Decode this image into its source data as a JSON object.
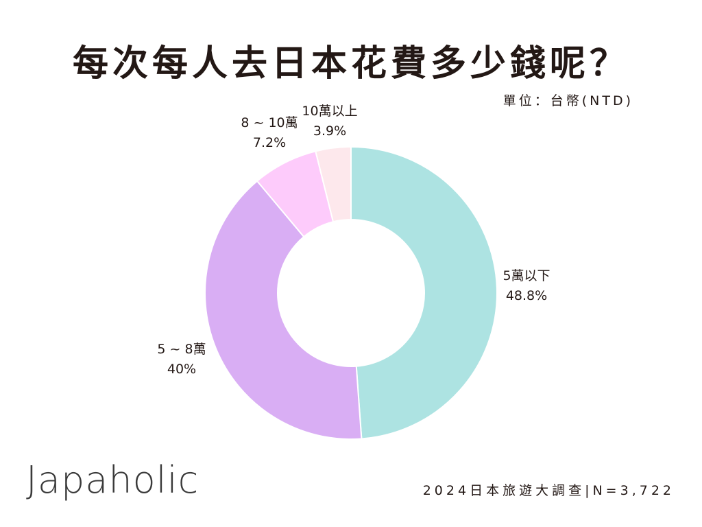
{
  "header": {
    "title": "每次每人去日本花費多少錢呢？",
    "unit": "單位：台幣(NTD)"
  },
  "footer": {
    "brand": "Japaholic",
    "source": "2024日本旅遊大調查|N=3,722"
  },
  "chart_data": {
    "type": "pie",
    "donut": true,
    "title": "每次每人去日本花費多少錢呢？",
    "unit": "單位：台幣(NTD)",
    "categories": [
      "5萬以下",
      "5 ~ 8萬",
      "8 ~ 10萬",
      "10萬以上"
    ],
    "values": [
      48.8,
      40,
      7.2,
      3.9
    ],
    "value_labels": [
      "48.8%",
      "40%",
      "7.2%",
      "3.9%"
    ],
    "colors": [
      "#ade3e2",
      "#d9aef4",
      "#fdcbfb",
      "#fde8ec"
    ]
  }
}
